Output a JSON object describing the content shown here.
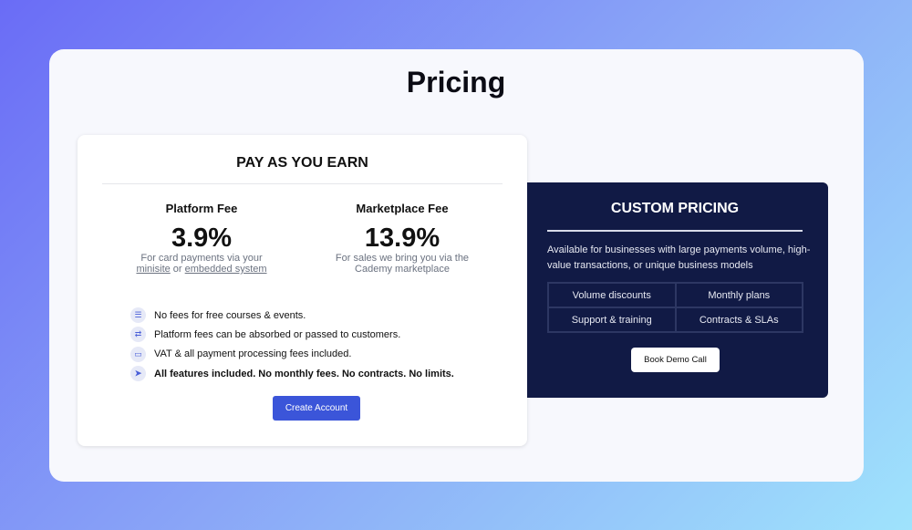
{
  "page": {
    "title": "Pricing"
  },
  "pay_as_you_earn": {
    "heading": "PAY AS YOU EARN",
    "platform_fee": {
      "label": "Platform Fee",
      "value": "3.9%",
      "desc_1": "For card payments via your",
      "link_1": "minisite",
      "or": " or ",
      "link_2": "embedded system"
    },
    "marketplace_fee": {
      "label": "Marketplace Fee",
      "value": "13.9%",
      "desc_1": "For sales we bring you via the",
      "desc_2": "Cademy marketplace"
    },
    "features": [
      {
        "icon": "coins-icon",
        "text": "No fees for free courses & events."
      },
      {
        "icon": "transfer-icon",
        "text": "Platform fees can be absorbed or passed to customers."
      },
      {
        "icon": "credit-card-icon",
        "text": "VAT & all payment processing fees included."
      },
      {
        "icon": "rocket-icon",
        "text": "All features included. No monthly fees. No contracts. No limits."
      }
    ],
    "button": "Create Account"
  },
  "custom_pricing": {
    "heading": "CUSTOM PRICING",
    "description": "Available for businesses with large payments volume, high-value transactions, or unique business models",
    "options": [
      "Volume discounts",
      "Monthly plans",
      "Support & training",
      "Contracts & SLAs"
    ],
    "button": "Book Demo Call"
  },
  "colors": {
    "accent": "#3b55d9",
    "dark_card": "#111a45"
  }
}
